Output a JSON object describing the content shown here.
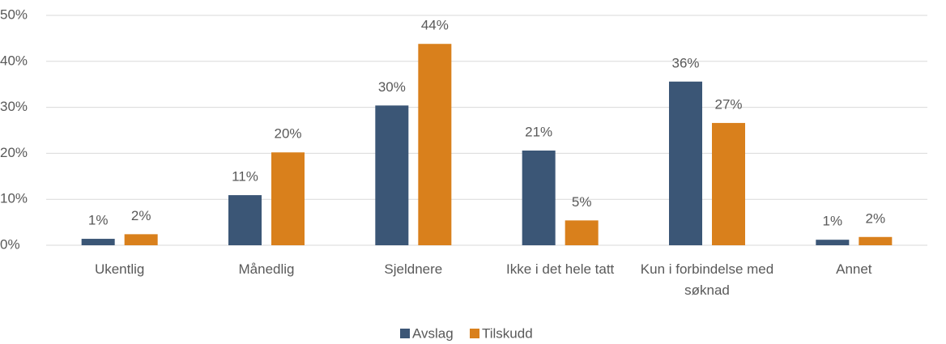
{
  "chart_data": {
    "type": "bar",
    "categories": [
      "Ukentlig",
      "Månedlig",
      "Sjeldnere",
      "Ikke i det hele tatt",
      "Kun i forbindelse med søknad",
      "Annet"
    ],
    "series": [
      {
        "name": "Avslag",
        "color": "#3b5676",
        "values": [
          1.4,
          10.9,
          30.4,
          20.6,
          35.6,
          1.2
        ],
        "value_labels": [
          "1%",
          "11%",
          "30%",
          "21%",
          "36%",
          "1%"
        ]
      },
      {
        "name": "Tilskudd",
        "color": "#d9801c",
        "values": [
          2.4,
          20.2,
          43.8,
          5.4,
          26.6,
          1.8
        ],
        "value_labels": [
          "2%",
          "20%",
          "44%",
          "5%",
          "27%",
          "2%"
        ]
      }
    ],
    "ylim": [
      0,
      50
    ],
    "yticks": [
      {
        "value": 0,
        "label": "0%"
      },
      {
        "value": 10,
        "label": "10%"
      },
      {
        "value": 20,
        "label": "20%"
      },
      {
        "value": 30,
        "label": "30%"
      },
      {
        "value": 40,
        "label": "40%"
      },
      {
        "value": 50,
        "label": "50%"
      }
    ],
    "grid": true,
    "legend": "bottom"
  }
}
